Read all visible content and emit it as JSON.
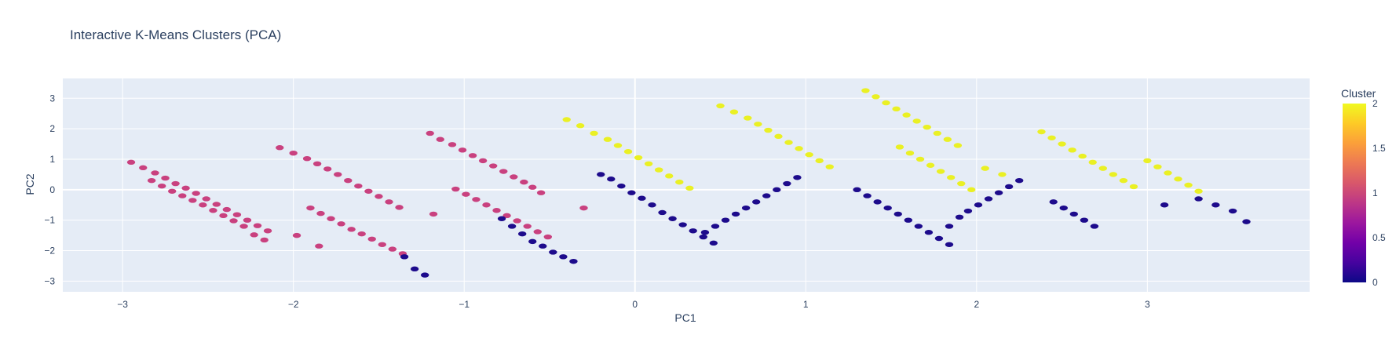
{
  "chart_data": {
    "type": "scatter",
    "title": "Interactive K-Means Clusters (PCA)",
    "xlabel": "PC1",
    "ylabel": "PC2",
    "xlim": [
      -3.35,
      3.95
    ],
    "ylim": [
      -3.35,
      3.65
    ],
    "xticks": [
      -3,
      -2,
      -1,
      0,
      1,
      2,
      3
    ],
    "yticks": [
      -3,
      -2,
      -1,
      0,
      1,
      2,
      3
    ],
    "grid": true,
    "plot_background": "#e5ecf6",
    "colorbar": {
      "title": "Cluster",
      "range": [
        0,
        2
      ],
      "ticks": [
        0,
        0.5,
        1,
        1.5,
        2
      ],
      "colorscale": [
        "#0d0887",
        "#46039f",
        "#7201a8",
        "#9c179e",
        "#bd3786",
        "#d8576b",
        "#ed7953",
        "#fb9f3a",
        "#fdca26",
        "#f0f921"
      ]
    },
    "series": [
      {
        "cluster": 1,
        "color": "#c9417f",
        "x": [
          -2.95,
          -2.88,
          -2.81,
          -2.75,
          -2.69,
          -2.63,
          -2.57,
          -2.51,
          -2.45,
          -2.39,
          -2.33,
          -2.27,
          -2.21,
          -2.15,
          -2.83,
          -2.77,
          -2.71,
          -2.65,
          -2.59,
          -2.53,
          -2.47,
          -2.41,
          -2.35,
          -2.29,
          -2.23,
          -2.17,
          -2.08,
          -2.0,
          -1.92,
          -1.86,
          -1.8,
          -1.74,
          -1.68,
          -1.62,
          -1.56,
          -1.5,
          -1.44,
          -1.38,
          -1.98,
          -1.9,
          -1.84,
          -1.78,
          -1.72,
          -1.66,
          -1.6,
          -1.54,
          -1.48,
          -1.42,
          -1.36,
          -1.85,
          -1.2,
          -1.14,
          -1.07,
          -1.01,
          -0.95,
          -0.89,
          -0.83,
          -0.77,
          -0.71,
          -0.65,
          -0.6,
          -0.55,
          -1.05,
          -0.99,
          -0.93,
          -0.87,
          -0.81,
          -0.75,
          -0.69,
          -0.63,
          -0.57,
          -0.51,
          -1.18,
          -0.3
        ],
        "y": [
          0.9,
          0.72,
          0.55,
          0.38,
          0.2,
          0.05,
          -0.12,
          -0.3,
          -0.48,
          -0.65,
          -0.82,
          -1.0,
          -1.18,
          -1.35,
          0.3,
          0.12,
          -0.05,
          -0.2,
          -0.35,
          -0.5,
          -0.68,
          -0.85,
          -1.02,
          -1.2,
          -1.48,
          -1.65,
          1.38,
          1.2,
          1.02,
          0.85,
          0.68,
          0.5,
          0.3,
          0.12,
          -0.05,
          -0.22,
          -0.4,
          -0.58,
          -1.5,
          -0.6,
          -0.78,
          -0.95,
          -1.12,
          -1.3,
          -1.45,
          -1.62,
          -1.8,
          -1.95,
          -2.1,
          -1.85,
          1.85,
          1.65,
          1.48,
          1.3,
          1.12,
          0.95,
          0.78,
          0.6,
          0.42,
          0.25,
          0.08,
          -0.1,
          0.02,
          -0.15,
          -0.32,
          -0.5,
          -0.68,
          -0.85,
          -1.02,
          -1.2,
          -1.38,
          -1.55,
          -0.8,
          -0.6
        ]
      },
      {
        "cluster": 0,
        "color": "#1d0b8c",
        "x": [
          -1.35,
          -1.29,
          -1.23,
          -0.78,
          -0.72,
          -0.66,
          -0.6,
          -0.54,
          -0.48,
          -0.42,
          -0.36,
          -0.2,
          -0.14,
          -0.08,
          -0.02,
          0.04,
          0.1,
          0.16,
          0.22,
          0.28,
          0.34,
          0.4,
          0.46,
          0.95,
          0.89,
          0.83,
          0.77,
          0.71,
          0.65,
          0.59,
          0.53,
          0.47,
          0.41,
          1.3,
          1.36,
          1.42,
          1.48,
          1.54,
          1.6,
          1.66,
          1.72,
          1.78,
          1.84,
          2.25,
          2.19,
          2.13,
          2.07,
          2.01,
          1.95,
          1.9,
          1.84,
          2.45,
          2.51,
          2.57,
          2.63,
          2.69,
          3.1,
          3.3,
          3.4,
          3.5,
          3.58
        ],
        "y": [
          -2.2,
          -2.6,
          -2.8,
          -0.95,
          -1.2,
          -1.45,
          -1.7,
          -1.85,
          -2.05,
          -2.2,
          -2.35,
          0.5,
          0.35,
          0.12,
          -0.1,
          -0.28,
          -0.5,
          -0.75,
          -0.95,
          -1.15,
          -1.35,
          -1.55,
          -1.75,
          0.4,
          0.2,
          0.0,
          -0.2,
          -0.4,
          -0.6,
          -0.8,
          -1.0,
          -1.2,
          -1.4,
          0.0,
          -0.2,
          -0.4,
          -0.6,
          -0.8,
          -1.0,
          -1.2,
          -1.4,
          -1.6,
          -1.8,
          0.3,
          0.1,
          -0.1,
          -0.3,
          -0.5,
          -0.7,
          -0.9,
          -1.2,
          -0.4,
          -0.6,
          -0.8,
          -1.0,
          -1.2,
          -0.5,
          -0.3,
          -0.5,
          -0.7,
          -1.05
        ]
      },
      {
        "cluster": 2,
        "color": "#eaf024",
        "x": [
          -0.4,
          -0.32,
          -0.24,
          -0.16,
          -0.1,
          -0.04,
          0.02,
          0.08,
          0.14,
          0.2,
          0.26,
          0.32,
          0.5,
          0.58,
          0.66,
          0.72,
          0.78,
          0.84,
          0.9,
          0.96,
          1.02,
          1.08,
          1.14,
          1.35,
          1.41,
          1.47,
          1.53,
          1.59,
          1.65,
          1.71,
          1.77,
          1.83,
          1.89,
          1.55,
          1.61,
          1.67,
          1.73,
          1.79,
          1.85,
          1.91,
          1.97,
          2.38,
          2.44,
          2.5,
          2.56,
          2.62,
          2.68,
          2.74,
          2.8,
          2.86,
          2.92,
          3.0,
          3.06,
          3.12,
          3.18,
          3.24,
          3.3,
          2.05,
          2.15
        ],
        "y": [
          2.3,
          2.1,
          1.85,
          1.65,
          1.45,
          1.25,
          1.05,
          0.85,
          0.65,
          0.45,
          0.25,
          0.05,
          2.75,
          2.55,
          2.35,
          2.15,
          1.95,
          1.75,
          1.55,
          1.35,
          1.15,
          0.95,
          0.75,
          3.25,
          3.05,
          2.85,
          2.65,
          2.45,
          2.25,
          2.05,
          1.85,
          1.65,
          1.45,
          1.4,
          1.2,
          1.0,
          0.8,
          0.6,
          0.4,
          0.2,
          0.0,
          1.9,
          1.7,
          1.5,
          1.3,
          1.1,
          0.9,
          0.7,
          0.5,
          0.3,
          0.1,
          0.95,
          0.75,
          0.55,
          0.35,
          0.15,
          -0.05,
          0.7,
          0.5
        ]
      }
    ]
  }
}
